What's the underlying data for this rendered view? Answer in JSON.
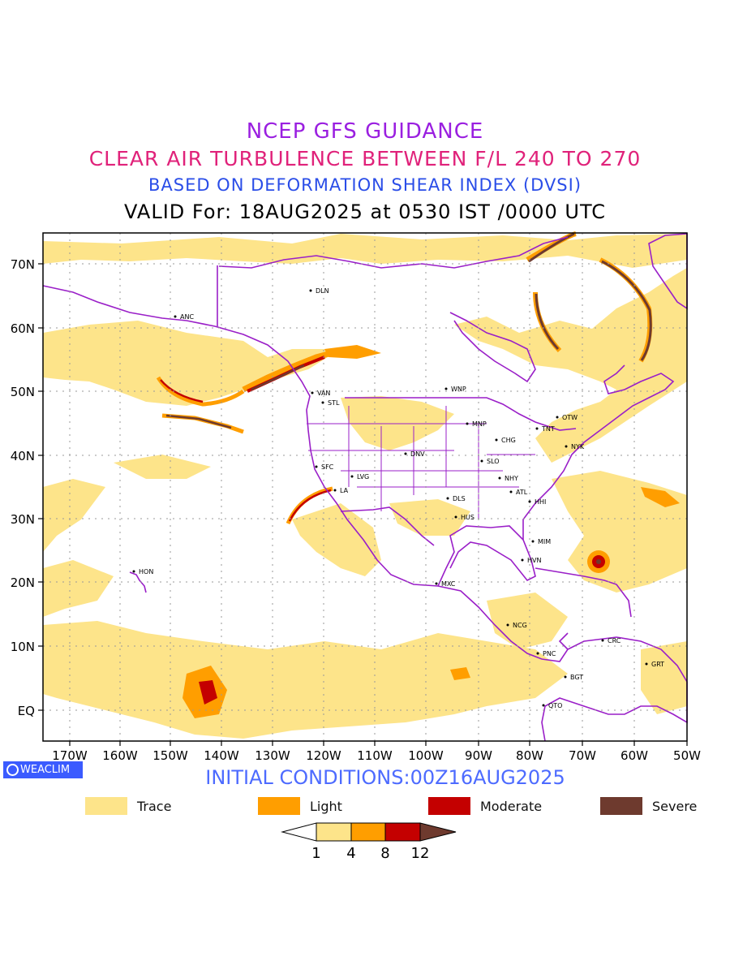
{
  "titles": {
    "line1": "NCEP GFS GUIDANCE",
    "line2": "CLEAR AIR TURBULENCE BETWEEN F/L 240 TO 270",
    "line3": "BASED ON DEFORMATION SHEAR INDEX (DVSI)",
    "line4": "VALID For: 18AUG2025 at 0530 IST /0000 UTC"
  },
  "brand": "WEACLIM",
  "initial_conditions": "INITIAL CONDITIONS:00Z16AUG2025",
  "lat_labels": [
    "70N",
    "60N",
    "50N",
    "40N",
    "30N",
    "20N",
    "10N",
    "EQ"
  ],
  "lon_labels": [
    "170W",
    "160W",
    "150W",
    "140W",
    "130W",
    "120W",
    "110W",
    "100W",
    "90W",
    "80W",
    "70W",
    "60W",
    "50W"
  ],
  "legend": [
    {
      "label": "Trace",
      "color": "#fde48a"
    },
    {
      "label": "Light",
      "color": "#ff9e00"
    },
    {
      "label": "Moderate",
      "color": "#c40000"
    },
    {
      "label": "Severe",
      "color": "#6e3a2e"
    }
  ],
  "colorbar_ticks": [
    "1",
    "4",
    "8",
    "12"
  ],
  "stations": [
    {
      "code": "ANC"
    },
    {
      "code": "DLN"
    },
    {
      "code": "VAN"
    },
    {
      "code": "STL"
    },
    {
      "code": "WNP"
    },
    {
      "code": "MNP"
    },
    {
      "code": "OTW"
    },
    {
      "code": "TNT"
    },
    {
      "code": "CHG"
    },
    {
      "code": "NYK"
    },
    {
      "code": "DNV"
    },
    {
      "code": "SFC"
    },
    {
      "code": "LVG"
    },
    {
      "code": "SLO"
    },
    {
      "code": "NHY"
    },
    {
      "code": "LA"
    },
    {
      "code": "ATL"
    },
    {
      "code": "DLS"
    },
    {
      "code": "HHI"
    },
    {
      "code": "HUS"
    },
    {
      "code": "MIM"
    },
    {
      "code": "HVN"
    },
    {
      "code": "HON"
    },
    {
      "code": "MXC"
    },
    {
      "code": "NCG"
    },
    {
      "code": "CRC"
    },
    {
      "code": "PNC"
    },
    {
      "code": "GRT"
    },
    {
      "code": "BGT"
    },
    {
      "code": "QTO"
    }
  ],
  "colors": {
    "trace": "#fde48a",
    "light": "#ff9e00",
    "moderate": "#c40000",
    "severe": "#6e3a2e",
    "coastline": "#9a1fc8"
  }
}
